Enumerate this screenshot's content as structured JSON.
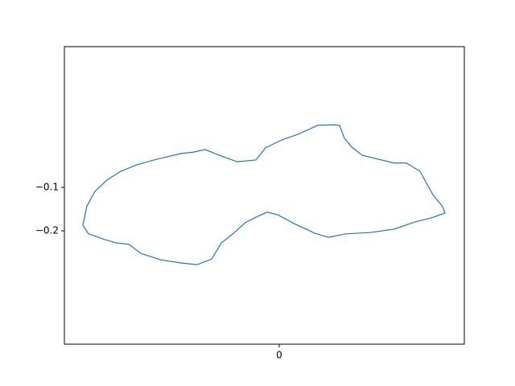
{
  "chart_data": {
    "type": "line",
    "x": [
      -244,
      -239,
      -229,
      -214,
      -197,
      -177,
      -152,
      -122,
      -107,
      -92,
      -72,
      -52,
      -29,
      -17,
      3,
      23,
      48,
      68,
      75,
      81,
      90,
      103,
      123,
      143,
      158,
      175,
      184,
      191,
      203,
      206,
      191,
      168,
      143,
      113,
      83,
      61,
      45,
      18,
      -2,
      -15,
      -27,
      -42,
      -57,
      -72,
      -84,
      -102,
      -122,
      -147,
      -172,
      -187,
      -202,
      -217,
      -237,
      -244
    ],
    "series": [
      {
        "color": "#1f77b4",
        "values": [
          -0.187,
          -0.143,
          -0.109,
          -0.083,
          -0.063,
          -0.048,
          -0.035,
          -0.022,
          -0.019,
          -0.013,
          -0.028,
          -0.041,
          -0.037,
          -0.009,
          0.009,
          0.022,
          0.043,
          0.044,
          0.043,
          0.013,
          -0.007,
          -0.026,
          -0.035,
          -0.044,
          -0.044,
          -0.063,
          -0.094,
          -0.117,
          -0.144,
          -0.159,
          -0.169,
          -0.18,
          -0.196,
          -0.204,
          -0.207,
          -0.215,
          -0.206,
          -0.183,
          -0.163,
          -0.157,
          -0.167,
          -0.181,
          -0.206,
          -0.228,
          -0.265,
          -0.278,
          -0.274,
          -0.267,
          -0.252,
          -0.231,
          -0.228,
          -0.22,
          -0.207,
          -0.187
        ]
      }
    ],
    "xlim": [
      -267,
      230
    ],
    "ylim": [
      -0.461,
      0.224
    ],
    "xticks": [
      0
    ],
    "yticks": [
      {
        "value": -0.2,
        "label": "−0.2"
      },
      {
        "value": -0.1,
        "label": "−0.1"
      }
    ]
  }
}
